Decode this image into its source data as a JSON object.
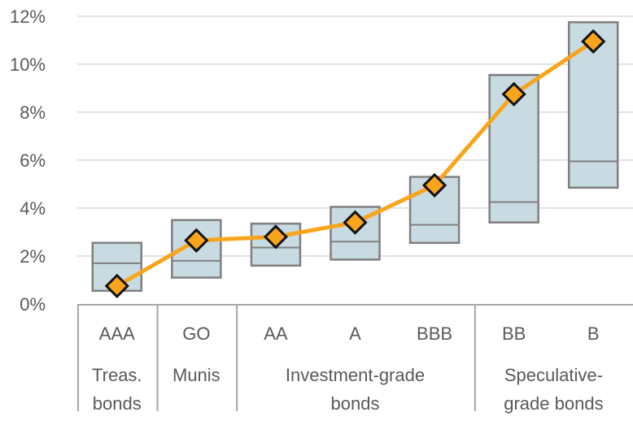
{
  "chart_data": {
    "type": "combo",
    "title": "",
    "xlabel": "",
    "ylabel": "",
    "categories": [
      "AAA",
      "GO",
      "AA",
      "A",
      "BBB",
      "BB",
      "B"
    ],
    "category_groups": [
      {
        "label": "Treas. bonds",
        "label_lines": [
          "Treas.",
          "bonds"
        ],
        "categories": [
          "AAA"
        ],
        "slot_span": [
          0,
          1
        ]
      },
      {
        "label": "Munis",
        "label_lines": [
          "Munis"
        ],
        "categories": [
          "GO"
        ],
        "slot_span": [
          1,
          2
        ]
      },
      {
        "label": "Investment-grade bonds",
        "label_lines": [
          "Investment-grade",
          "bonds"
        ],
        "categories": [
          "AA",
          "A",
          "BBB"
        ],
        "slot_span": [
          2,
          5
        ]
      },
      {
        "label": "Speculative-grade bonds",
        "label_lines": [
          "Speculative-",
          "grade bonds"
        ],
        "categories": [
          "BB",
          "B"
        ],
        "slot_span": [
          5,
          7
        ]
      }
    ],
    "series": [
      {
        "name": "yield-range-box",
        "type": "range-bar",
        "low": [
          0.55,
          1.1,
          1.6,
          1.85,
          2.55,
          3.4,
          4.85
        ],
        "median": [
          1.7,
          1.8,
          2.35,
          2.6,
          3.3,
          4.25,
          5.95
        ],
        "high": [
          2.55,
          3.5,
          3.35,
          4.05,
          5.3,
          9.55,
          11.75
        ]
      },
      {
        "name": "yield-line",
        "type": "line",
        "marker": "diamond",
        "values": [
          0.75,
          2.65,
          2.8,
          3.4,
          4.95,
          8.75,
          10.95
        ]
      }
    ],
    "ylim": [
      0,
      12
    ],
    "yticks": [
      {
        "value": 0,
        "label": "0%"
      },
      {
        "value": 2,
        "label": "2%"
      },
      {
        "value": 4,
        "label": "4%"
      },
      {
        "value": 6,
        "label": "6%"
      },
      {
        "value": 8,
        "label": "8%"
      },
      {
        "value": 10,
        "label": "10%"
      },
      {
        "value": 12,
        "label": "12%"
      }
    ],
    "grid": "horizontal",
    "legend": "none",
    "colors": {
      "background": "#ffffff",
      "box_fill": "#c9dbe2",
      "box_border": "#7f7f7f",
      "median_line": "#7f7f7f",
      "line": "#F9A51B",
      "marker_fill": "#F9A51B",
      "marker_border": "#121212",
      "gridline": "#d9d9d9",
      "axis_text": "#595959",
      "table_line": "#a6a6a6"
    }
  }
}
